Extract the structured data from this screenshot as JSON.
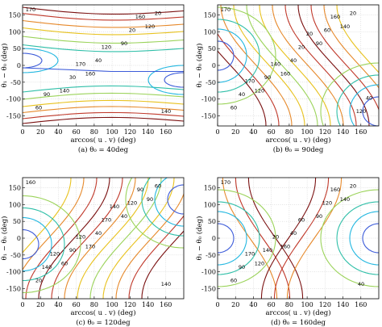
{
  "chart_data": [
    {
      "type": "contour",
      "id": "a",
      "caption": "(a)  θ₀ = 40deg",
      "xlabel": "arccos( u . v)  (deg)",
      "ylabel": "θ₁ − θ₀  (deg)",
      "xlim": [
        0,
        180
      ],
      "ylim": [
        -180,
        180
      ],
      "xticks": [
        0,
        20,
        40,
        60,
        80,
        100,
        120,
        140,
        160
      ],
      "yticks": [
        150,
        100,
        50,
        0,
        -50,
        -100,
        -150
      ],
      "grid": true,
      "contour_labels": [
        "170",
        "160",
        "120",
        "140",
        "90",
        "60",
        "40",
        "20",
        "30",
        "20",
        "90",
        "120",
        "140",
        "170",
        "160"
      ]
    },
    {
      "type": "contour",
      "id": "b",
      "caption": "(b)  θ₀ = 90deg",
      "xlabel": "arccos( u . v)  (deg)",
      "ylabel": "θ₁ − θ₀  (deg)",
      "xlim": [
        0,
        180
      ],
      "ylim": [
        -180,
        180
      ],
      "xticks": [
        0,
        20,
        40,
        60,
        80,
        100,
        120,
        140,
        160
      ],
      "yticks": [
        150,
        100,
        50,
        0,
        -50,
        -100,
        -150
      ],
      "grid": true,
      "contour_labels": [
        "170",
        "160",
        "140",
        "120",
        "90",
        "60",
        "40",
        "20",
        "90",
        "60",
        "40",
        "20",
        "120",
        "140",
        "160",
        "170",
        "20",
        "40"
      ]
    },
    {
      "type": "contour",
      "id": "c",
      "caption": "(c)  θ₀ = 120deg",
      "xlabel": "arccos( u . v)  (deg)",
      "ylabel": "θ₁ − θ₀  (deg)",
      "xlim": [
        0,
        180
      ],
      "ylim": [
        -180,
        180
      ],
      "xticks": [
        0,
        20,
        40,
        60,
        80,
        100,
        120,
        140,
        160
      ],
      "yticks": [
        150,
        100,
        50,
        0,
        -50,
        -100,
        -150
      ],
      "grid": true,
      "contour_labels": [
        "160",
        "170",
        "90",
        "60",
        "40",
        "20",
        "40",
        "60",
        "90",
        "120",
        "140",
        "170",
        "140",
        "120",
        "90",
        "120",
        "140"
      ]
    },
    {
      "type": "contour",
      "id": "d",
      "caption": "(d)  θ₀ = 160deg",
      "xlabel": "arccos( u . v)  (deg)",
      "ylabel": "θ₁ − θ₀  (deg)",
      "xlim": [
        0,
        180
      ],
      "ylim": [
        -180,
        180
      ],
      "xticks": [
        0,
        20,
        40,
        60,
        80,
        100,
        120,
        140,
        160
      ],
      "yticks": [
        150,
        100,
        50,
        0,
        -50,
        -100,
        -150
      ],
      "grid": true,
      "contour_labels": [
        "170",
        "160",
        "140",
        "120",
        "90",
        "60",
        "40",
        "20",
        "140",
        "120",
        "90",
        "60",
        "40",
        "20",
        "160",
        "170"
      ]
    }
  ],
  "contour_colors": {
    "170": "#7a1010",
    "160": "#c0392b",
    "140": "#e6892b",
    "120": "#e8c21e",
    "90": "#9bd35a",
    "60": "#2fbfa8",
    "40": "#22b7e0",
    "20": "#3c5bd9",
    "axis": "#000000",
    "grid": "#c8c8c8"
  }
}
